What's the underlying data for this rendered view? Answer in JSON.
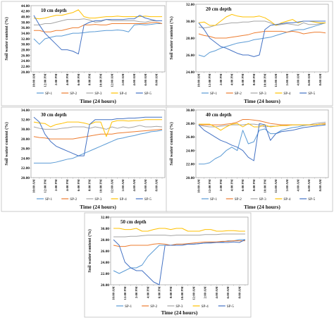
{
  "colors": {
    "SP-1": "#5b9bd5",
    "SP-2": "#ed7d31",
    "SP-3": "#a5a5a5",
    "SP-4": "#ffc000",
    "SP-5": "#4472c4"
  },
  "chart_data": [
    {
      "type": "line",
      "title": "10 cm depth",
      "xlabel": "Time (24 hours)",
      "ylabel": "Soil water content (%)",
      "ylim": [
        20,
        44
      ],
      "ytick_step": 2,
      "legend_position": "bottom",
      "categories": [
        "10:00 AM",
        "11:00 AM",
        "12:00 PM",
        "1:00 PM",
        "2:00 PM",
        "3:00 PM",
        "4:00 PM",
        "5:00 PM",
        "6:00 PM",
        "7:00 PM",
        "8:00 PM",
        "9:00 PM",
        "10:00 PM",
        "11:00 PM",
        "12:00 AM",
        "1:00 AM",
        "2:00 AM",
        "3:00 AM",
        "4:00 AM",
        "5:00 AM",
        "6:00 AM",
        "7:00 AM",
        "8:00 AM",
        "9:00 AM"
      ],
      "series": [
        {
          "name": "SP-1",
          "values": [
            32,
            30,
            32,
            32.5,
            33,
            33,
            33.5,
            34,
            34,
            34.2,
            34.5,
            34.6,
            34.8,
            35,
            35,
            35.2,
            35,
            34.5,
            37,
            37.2,
            37,
            37.2,
            37.5,
            37.5
          ]
        },
        {
          "name": "SP-2",
          "values": [
            35,
            35,
            34.5,
            34.5,
            35,
            35,
            35.5,
            36,
            36,
            37,
            37,
            37.2,
            37,
            37,
            37.5,
            37.5,
            37.5,
            37.5,
            37.5,
            37.5,
            37.5,
            37.8,
            38,
            37.5
          ]
        },
        {
          "name": "SP-3",
          "values": [
            37,
            37,
            37.5,
            37.5,
            38,
            38.5,
            39,
            39,
            39,
            39.2,
            38.8,
            38,
            38.2,
            39,
            38.5,
            38.5,
            38.5,
            38.5,
            38.5,
            38.2,
            38,
            38.5,
            38.5,
            38.5
          ]
        },
        {
          "name": "SP-4",
          "values": [
            39.5,
            39.2,
            39.5,
            40,
            40.5,
            40.5,
            41,
            41.5,
            42.5,
            40,
            39.5,
            39.5,
            39.8,
            40,
            40,
            40.2,
            40,
            40,
            40,
            40,
            40.2,
            40,
            40,
            40
          ]
        },
        {
          "name": "SP-5",
          "values": [
            40.5,
            37,
            34,
            32,
            30,
            28,
            28,
            27.5,
            26.5,
            37,
            38,
            38.5,
            38.5,
            39,
            39,
            39,
            39,
            39.2,
            39.2,
            40.5,
            39.5,
            39,
            38.5,
            38.5
          ]
        }
      ]
    },
    {
      "type": "line",
      "title": "20 cm depth",
      "xlabel": "Time (24 hours)",
      "ylabel": "Soil water content (%)",
      "ylim": [
        24,
        32
      ],
      "ytick_step": 2,
      "legend_position": "bottom",
      "categories": [
        "10:00 AM",
        "11:00 AM",
        "12:00 PM",
        "1:00 PM",
        "2:00 PM",
        "3:00 PM",
        "4:00 PM",
        "5:00 PM",
        "6:00 PM",
        "7:00 PM",
        "8:00 PM",
        "9:00 PM",
        "10:00 PM",
        "11:00 PM",
        "12:00 AM",
        "1:00 AM",
        "2:00 AM",
        "3:00 AM",
        "4:00 AM",
        "5:00 AM",
        "6:00 AM",
        "7:00 AM",
        "8:00 AM",
        "9:00 AM"
      ],
      "series": [
        {
          "name": "SP-1",
          "values": [
            26,
            25.8,
            26.3,
            26.5,
            26.8,
            27,
            27.2,
            27.4,
            27.5,
            27.6,
            27.8,
            27.9,
            28,
            28.1,
            28.3,
            28.5,
            28.7,
            28.9,
            29,
            29,
            29.2,
            29.4,
            29.6,
            29.8
          ]
        },
        {
          "name": "SP-2",
          "values": [
            28.5,
            28.3,
            28.2,
            28,
            28,
            28,
            28.1,
            28.2,
            28.3,
            28.4,
            28.6,
            28.7,
            28.8,
            28.8,
            28.8,
            28.8,
            28.7,
            28.8,
            28.7,
            28.5,
            28.6,
            28.7,
            28.7,
            28.6
          ]
        },
        {
          "name": "SP-3",
          "values": [
            29.3,
            29.2,
            29.3,
            29.5,
            29.6,
            29.7,
            29.8,
            29.8,
            29.9,
            29.9,
            30,
            30,
            30,
            29.8,
            29.5,
            29.6,
            29.7,
            29.6,
            29.5,
            29.8,
            29.6,
            29.6,
            29.7,
            29.8
          ]
        },
        {
          "name": "SP-4",
          "values": [
            29.8,
            29.9,
            29.5,
            29.5,
            30,
            30.5,
            30.8,
            30.6,
            30.5,
            30.5,
            30.5,
            30.6,
            30.4,
            30,
            29.5,
            29.8,
            30,
            30.2,
            29.8,
            30,
            30,
            29.9,
            29.8,
            29.8
          ]
        },
        {
          "name": "SP-5",
          "values": [
            29.8,
            29,
            28,
            27.5,
            27,
            26.8,
            26.5,
            26.2,
            26,
            26,
            25.8,
            26,
            29,
            29.5,
            29.6,
            29.7,
            29.8,
            29.8,
            29.9,
            30,
            30,
            30,
            30,
            30
          ]
        }
      ]
    },
    {
      "type": "line",
      "title": "30 cm depth",
      "xlabel": "Time (24 hours)",
      "ylabel": "Soil water content (%)",
      "ylim": [
        20,
        34
      ],
      "ytick_step": 2,
      "legend_position": "bottom",
      "categories": [
        "10:00 AM",
        "11:00 AM",
        "12:00 PM",
        "1:00 PM",
        "2:00 PM",
        "3:00 PM",
        "4:00 PM",
        "5:00 PM",
        "6:00 PM",
        "7:00 PM",
        "8:00 PM",
        "9:00 PM",
        "10:00 PM",
        "11:00 PM",
        "12:00 AM",
        "1:00 AM",
        "2:00 AM",
        "3:00 AM",
        "4:00 AM",
        "5:00 AM",
        "6:00 AM",
        "7:00 AM",
        "8:00 AM",
        "9:00 AM"
      ],
      "series": [
        {
          "name": "SP-1",
          "values": [
            23,
            23,
            23,
            23,
            23.2,
            23.5,
            23.8,
            24,
            24.5,
            25,
            25.5,
            26,
            26.5,
            27,
            27.5,
            28,
            28.2,
            28.5,
            28.7,
            29,
            29.2,
            29.5,
            29.6,
            29.8
          ]
        },
        {
          "name": "SP-2",
          "values": [
            28.5,
            28.3,
            28.2,
            28,
            28,
            28,
            28,
            28,
            28.2,
            28.4,
            28.6,
            28.8,
            29,
            29,
            29,
            29.2,
            29.3,
            29.4,
            29.5,
            29.6,
            29.7,
            29.8,
            29.9,
            30
          ]
        },
        {
          "name": "SP-3",
          "values": [
            30.5,
            30.2,
            30,
            30,
            30,
            30.2,
            30.3,
            30.5,
            30.5,
            30.5,
            30.2,
            30.5,
            30.3,
            30,
            30.5,
            30.2,
            30.5,
            30.3,
            30.5,
            30.8,
            30.5,
            30.5,
            30.6,
            30.5
          ]
        },
        {
          "name": "SP-4",
          "values": [
            31.5,
            31.3,
            31.2,
            30.5,
            31,
            31.2,
            31.5,
            31.5,
            31.5,
            31.3,
            31,
            31.5,
            31.5,
            28.5,
            31.5,
            31.8,
            31.8,
            31.7,
            31.8,
            31.8,
            32,
            32,
            32,
            32
          ]
        },
        {
          "name": "SP-5",
          "values": [
            32.5,
            31.5,
            29,
            27.5,
            26.5,
            26,
            25.5,
            25,
            24.5,
            24.5,
            31,
            32,
            32,
            32,
            32,
            32.2,
            32.2,
            32.3,
            32.3,
            32.4,
            32.5,
            32.5,
            32.5,
            32.5
          ]
        }
      ]
    },
    {
      "type": "line",
      "title": "40 cm depth",
      "xlabel": "Time (24 hours)",
      "ylabel": "Soil water content (%)",
      "ylim": [
        20,
        30
      ],
      "ytick_step": 2,
      "legend_position": "bottom",
      "categories": [
        "10:00 AM",
        "11:00 AM",
        "12:00 PM",
        "1:00 PM",
        "2:00 PM",
        "3:00 PM",
        "4:00 PM",
        "5:00 PM",
        "6:00 PM",
        "7:00 PM",
        "8:00 PM",
        "9:00 PM",
        "10:00 PM",
        "11:00 PM",
        "12:00 AM",
        "1:00 AM",
        "2:00 AM",
        "3:00 AM",
        "4:00 AM",
        "5:00 AM",
        "6:00 AM",
        "7:00 AM",
        "8:00 AM",
        "9:00 AM"
      ],
      "series": [
        {
          "name": "SP-1",
          "values": [
            22,
            22,
            22.2,
            22.8,
            23.2,
            24,
            24.5,
            24,
            27,
            25,
            25.3,
            27,
            27.2,
            26.5,
            26.5,
            27,
            27.2,
            27.4,
            27.5,
            27.7,
            27.8,
            27.8,
            27.9,
            28
          ]
        },
        {
          "name": "SP-2",
          "values": [
            27.8,
            27.8,
            27.8,
            27.8,
            27.8,
            27.9,
            28,
            28.2,
            28.6,
            28.6,
            28.5,
            28.4,
            28.2,
            28,
            27.9,
            27.8,
            27.8,
            27.8,
            27.8,
            27.8,
            27.8,
            27.8,
            27.9,
            28
          ]
        },
        {
          "name": "SP-3",
          "values": [
            27.8,
            27.6,
            27.5,
            27.5,
            27.6,
            27.7,
            27.8,
            27.8,
            27.8,
            27.9,
            27.9,
            27.8,
            27.5,
            27.6,
            27.6,
            27.7,
            27.7,
            27.8,
            27.8,
            27.8,
            27.8,
            28,
            28.1,
            28.2
          ]
        },
        {
          "name": "SP-4",
          "values": [
            27.9,
            27.9,
            27.9,
            27.5,
            27,
            27.5,
            27.9,
            28,
            27.5,
            28,
            27.5,
            27.5,
            27.8,
            27.5,
            27.6,
            27.7,
            27.7,
            27.8,
            27.8,
            27.8,
            27.8,
            27.8,
            27.9,
            27.9
          ]
        },
        {
          "name": "SP-5",
          "values": [
            27.8,
            27,
            26.5,
            26,
            25.5,
            25.2,
            24.8,
            24.5,
            24,
            23,
            22.5,
            28,
            27.8,
            25.5,
            26.5,
            26.8,
            26.9,
            27,
            27.2,
            27.4,
            27.5,
            27.6,
            27.7,
            27.8
          ]
        }
      ]
    },
    {
      "type": "line",
      "title": "50 cm depth",
      "xlabel": "Time (24 hours)",
      "ylabel": "Soil water content (%)",
      "ylim": [
        20,
        32
      ],
      "ytick_step": 2,
      "legend_position": "bottom",
      "categories": [
        "10:00 AM",
        "11:00 AM",
        "12:00 PM",
        "1:00 PM",
        "2:00 PM",
        "3:00 PM",
        "4:00 PM",
        "5:00 PM",
        "6:00 PM",
        "7:00 PM",
        "8:00 PM",
        "9:00 PM",
        "10:00 PM",
        "11:00 PM",
        "12:00 AM",
        "1:00 AM",
        "2:00 AM",
        "3:00 AM",
        "4:00 AM",
        "5:00 AM",
        "6:00 AM",
        "7:00 AM",
        "8:00 AM",
        "9:00 AM"
      ],
      "series": [
        {
          "name": "SP-1",
          "values": [
            22.5,
            22,
            22.5,
            23,
            23,
            23.5,
            25,
            26,
            27,
            27,
            27,
            27.2,
            27.2,
            27.2,
            27.2,
            27.3,
            27.4,
            27.5,
            27.5,
            27.6,
            27.8,
            27.8,
            28,
            28
          ]
        },
        {
          "name": "SP-2",
          "values": [
            27,
            26.8,
            26.8,
            27,
            27,
            27,
            27,
            27.2,
            27.3,
            27.2,
            27,
            27.2,
            27.2,
            27.3,
            27.4,
            27.5,
            27.6,
            27.6,
            27.6,
            27.7,
            27.7,
            27.8,
            27.8,
            27.8
          ]
        },
        {
          "name": "SP-3",
          "values": [
            28.5,
            28.5,
            28.5,
            28.6,
            28.6,
            28.7,
            28.8,
            28.8,
            28.8,
            28.8,
            28.7,
            28.8,
            28.8,
            28.8,
            28.8,
            28.8,
            28.9,
            28.9,
            28.9,
            29,
            29,
            29,
            29,
            29
          ]
        },
        {
          "name": "SP-4",
          "values": [
            30,
            30,
            29.8,
            29.8,
            30,
            29.5,
            29.5,
            29.8,
            30,
            30,
            29.8,
            30,
            30,
            29.5,
            29.5,
            29.5,
            29.8,
            29.8,
            29.5,
            29.5,
            29.6,
            29.6,
            29.5,
            29.5
          ]
        },
        {
          "name": "SP-5",
          "values": [
            28,
            27,
            24,
            23,
            22.5,
            22.5,
            21.5,
            20.5,
            20,
            27,
            27,
            27,
            27,
            27.2,
            27.2,
            27.3,
            27.4,
            27.4,
            27.5,
            27.5,
            27.5,
            27.6,
            27.5,
            28
          ]
        }
      ]
    }
  ]
}
